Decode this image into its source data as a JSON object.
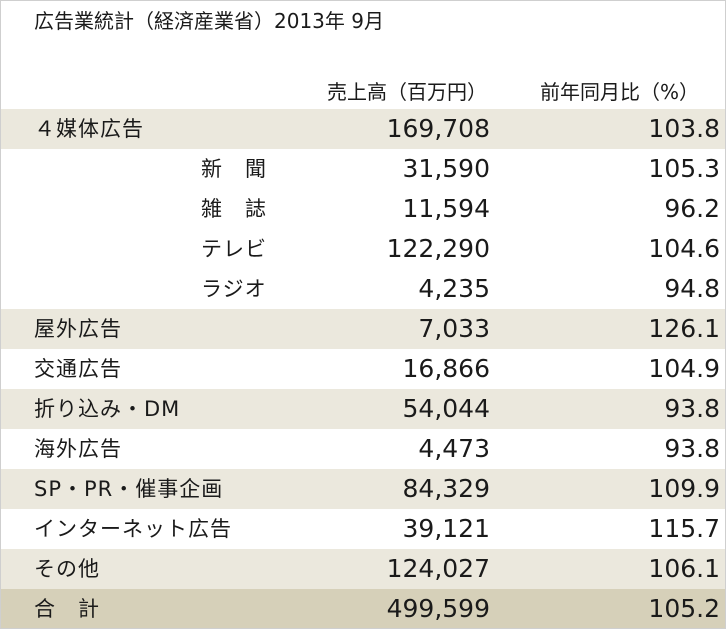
{
  "title": "広告業統計（経済産業省）2013年 9月",
  "columns": {
    "sales": "売上高（百万円）",
    "yoy": "前年同月比（%）"
  },
  "rows": [
    {
      "label": "４媒体広告",
      "sales": "169,708",
      "yoy": "103.8"
    },
    {
      "label": "新　聞",
      "sales": "31,590",
      "yoy": "105.3"
    },
    {
      "label": "雑　誌",
      "sales": "11,594",
      "yoy": "96.2"
    },
    {
      "label": "テレビ",
      "sales": "122,290",
      "yoy": "104.6"
    },
    {
      "label": "ラジオ",
      "sales": "4,235",
      "yoy": "94.8"
    },
    {
      "label": "屋外広告",
      "sales": "7,033",
      "yoy": "126.1"
    },
    {
      "label": "交通広告",
      "sales": "16,866",
      "yoy": "104.9"
    },
    {
      "label": "折り込み・DM",
      "sales": "54,044",
      "yoy": "93.8"
    },
    {
      "label": "海外広告",
      "sales": "4,473",
      "yoy": "93.8"
    },
    {
      "label": "SP・PR・催事企画",
      "sales": "84,329",
      "yoy": "109.9"
    },
    {
      "label": "インターネット広告",
      "sales": "39,121",
      "yoy": "115.7"
    },
    {
      "label": "その他",
      "sales": "124,027",
      "yoy": "106.1"
    },
    {
      "label": "合　計",
      "sales": "499,599",
      "yoy": "105.2"
    }
  ]
}
